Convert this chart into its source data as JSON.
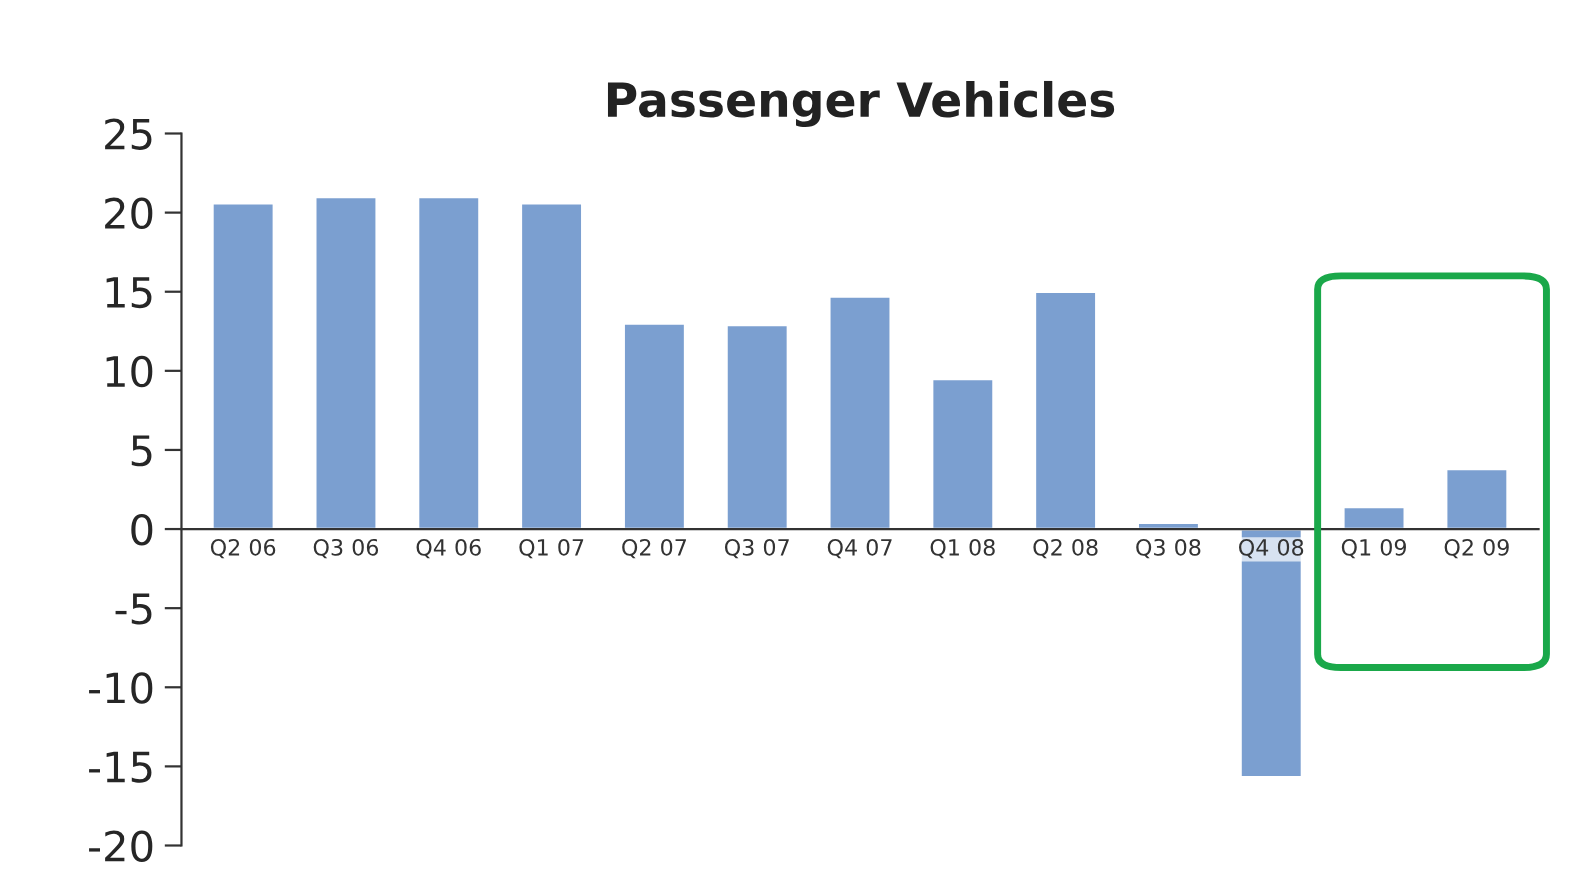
{
  "chart_data": {
    "type": "bar",
    "title": "Passenger Vehicles",
    "categories": [
      "Q2 06",
      "Q3 06",
      "Q4 06",
      "Q1 07",
      "Q2 07",
      "Q3 07",
      "Q4 07",
      "Q1 08",
      "Q2 08",
      "Q3 08",
      "Q4 08",
      "Q1 09",
      "Q2 09"
    ],
    "values": [
      20.6,
      21,
      21,
      20.6,
      13,
      12.9,
      14.7,
      9.5,
      15,
      0.4,
      -15.7,
      1.4,
      3.8
    ],
    "color": "#7b9fd0",
    "ylim": [
      -20,
      25
    ],
    "yticks": [
      -20,
      -15,
      -10,
      -5,
      0,
      5,
      10,
      15,
      20,
      25
    ],
    "grid": false,
    "legend": false
  }
}
